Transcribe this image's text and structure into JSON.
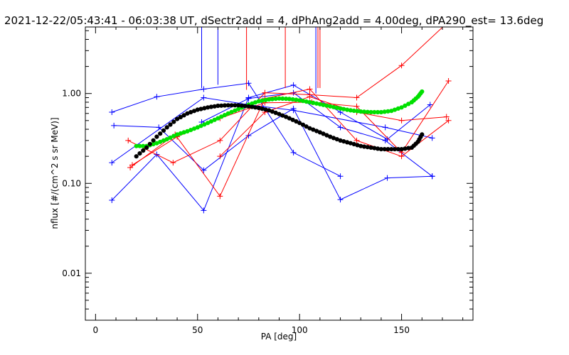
{
  "chart_data": {
    "type": "line",
    "title": "2021-12-22/05:43:41 - 06:03:38 UT, dSectr2add = 4, dPhAng2add = 4.00deg, dPA290_est=  13.6deg",
    "xlabel": "PA [deg]",
    "ylabel": "nflux [#/(cm^2 s sr MeV)]",
    "xlim": [
      -5,
      185
    ],
    "ylim": [
      0.003,
      5.5
    ],
    "yscale": "log",
    "grid": false,
    "xticks": [
      0,
      50,
      100,
      150
    ],
    "xtick_labels": [
      "0",
      "50",
      "100",
      "150"
    ],
    "yticks": [
      0.01,
      0.1,
      1.0
    ],
    "ytick_labels": [
      "0.01",
      "0.10",
      "1.00"
    ],
    "series": [
      {
        "color": "#0000ff",
        "style": "line-plus",
        "x": [
          8,
          30,
          53,
          75,
          97,
          120
        ],
        "y": [
          0.62,
          0.92,
          1.12,
          1.3,
          0.22,
          0.12
        ]
      },
      {
        "color": "#0000ff",
        "style": "line-plus",
        "x": [
          9,
          31,
          53,
          75,
          97,
          120,
          143,
          165
        ],
        "y": [
          0.44,
          0.42,
          0.14,
          0.34,
          0.68,
          0.066,
          0.115,
          0.12
        ]
      },
      {
        "color": "#0000ff",
        "style": "line-plus",
        "x": [
          8,
          30,
          53,
          75,
          97,
          120,
          143,
          164
        ],
        "y": [
          0.065,
          0.21,
          0.05,
          0.9,
          1.24,
          0.62,
          0.31,
          0.75
        ]
      },
      {
        "color": "#0000ff",
        "style": "line-plus",
        "x": [
          52,
          75,
          97,
          120,
          142,
          165
        ],
        "y": [
          0.48,
          0.88,
          1.02,
          0.42,
          0.3,
          0.12
        ]
      },
      {
        "color": "#0000ff",
        "style": "line-plus",
        "x": [
          8,
          53,
          75,
          97,
          142,
          165
        ],
        "y": [
          0.17,
          0.9,
          0.75,
          0.65,
          0.42,
          0.32
        ]
      },
      {
        "color": "#0000ff",
        "style": "vline",
        "x": [
          52,
          52
        ],
        "y": [
          1.15,
          5.5
        ]
      },
      {
        "color": "#0000ff",
        "style": "vline",
        "x": [
          60,
          60
        ],
        "y": [
          1.25,
          5.5
        ]
      },
      {
        "color": "#0000ff",
        "style": "vline",
        "x": [
          108,
          108
        ],
        "y": [
          1.0,
          5.5
        ]
      },
      {
        "color": "#ff0000",
        "style": "line-plus",
        "x": [
          16,
          38,
          61,
          83,
          105,
          128,
          150,
          172
        ],
        "y": [
          0.3,
          0.17,
          0.3,
          1.02,
          0.97,
          0.9,
          2.05,
          6.0
        ]
      },
      {
        "color": "#ff0000",
        "style": "line-plus",
        "x": [
          17,
          39,
          61,
          83,
          105,
          128,
          150,
          173
        ],
        "y": [
          0.15,
          0.35,
          0.072,
          0.88,
          1.12,
          0.3,
          0.2,
          0.5
        ]
      },
      {
        "color": "#ff0000",
        "style": "line-plus",
        "x": [
          18,
          40,
          61,
          83,
          106,
          128,
          150,
          173
        ],
        "y": [
          0.16,
          0.33,
          0.53,
          0.79,
          0.8,
          0.72,
          0.22,
          1.38
        ]
      },
      {
        "color": "#ff0000",
        "style": "line-plus",
        "x": [
          61,
          83,
          105,
          128,
          150,
          172
        ],
        "y": [
          0.2,
          0.62,
          0.92,
          0.62,
          0.5,
          0.55
        ]
      },
      {
        "color": "#ff0000",
        "style": "vline",
        "x": [
          74,
          74
        ],
        "y": [
          1.1,
          5.5
        ]
      },
      {
        "color": "#ff0000",
        "style": "vline",
        "x": [
          93,
          93
        ],
        "y": [
          1.15,
          5.5
        ]
      },
      {
        "color": "#ff0000",
        "style": "vline",
        "x": [
          109,
          109
        ],
        "y": [
          1.15,
          5.5
        ]
      },
      {
        "color": "#ff0000",
        "style": "vline",
        "x": [
          110,
          110
        ],
        "y": [
          1.15,
          5.5
        ]
      },
      {
        "color": "#00e000",
        "style": "dots",
        "x": [
          20,
          25,
          30,
          35,
          40,
          45,
          50,
          55,
          60,
          65,
          70,
          75,
          80,
          85,
          90,
          95,
          100,
          105,
          110,
          115,
          120,
          125,
          130,
          135,
          140,
          145,
          150,
          155,
          158,
          160
        ],
        "y": [
          0.26,
          0.26,
          0.28,
          0.31,
          0.35,
          0.38,
          0.42,
          0.47,
          0.53,
          0.6,
          0.67,
          0.75,
          0.82,
          0.86,
          0.88,
          0.87,
          0.84,
          0.8,
          0.76,
          0.72,
          0.68,
          0.65,
          0.63,
          0.62,
          0.62,
          0.64,
          0.7,
          0.8,
          0.92,
          1.05
        ]
      },
      {
        "color": "#000000",
        "style": "dots",
        "x": [
          20,
          25,
          30,
          35,
          40,
          45,
          50,
          55,
          60,
          65,
          70,
          75,
          80,
          85,
          90,
          95,
          100,
          105,
          110,
          115,
          120,
          125,
          130,
          135,
          140,
          145,
          150,
          155,
          158,
          160
        ],
        "y": [
          0.2,
          0.25,
          0.33,
          0.42,
          0.52,
          0.6,
          0.66,
          0.7,
          0.73,
          0.74,
          0.74,
          0.72,
          0.69,
          0.65,
          0.59,
          0.53,
          0.47,
          0.41,
          0.37,
          0.33,
          0.3,
          0.28,
          0.26,
          0.25,
          0.24,
          0.24,
          0.24,
          0.25,
          0.29,
          0.35
        ]
      }
    ]
  }
}
